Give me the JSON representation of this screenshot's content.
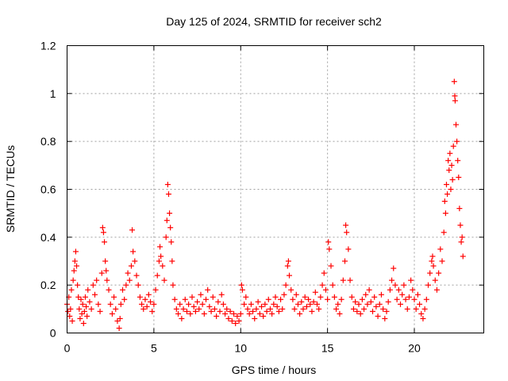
{
  "chart_data": {
    "type": "scatter",
    "title": "Day 125 of 2024, SRMTID for receiver sch2",
    "xlabel": "GPS time / hours",
    "ylabel": "SRMTID / TECUs",
    "xlim": [
      0,
      24
    ],
    "ylim": [
      0,
      1.2
    ],
    "xticks": [
      0,
      5,
      10,
      15,
      20
    ],
    "xtick_labels": [
      "0",
      "5",
      "10",
      "15",
      "20"
    ],
    "yticks": [
      0,
      0.2,
      0.4,
      0.6,
      0.8,
      1.0,
      1.2
    ],
    "ytick_labels": [
      "0",
      "0.2",
      "0.4",
      "0.6",
      "0.8",
      "1",
      "1.2"
    ],
    "grid": true,
    "marker": "+",
    "color": "#ff0000",
    "series": [
      {
        "name": "SRMTID",
        "points": [
          [
            0.0,
            0.12
          ],
          [
            0.05,
            0.09
          ],
          [
            0.1,
            0.15
          ],
          [
            0.15,
            0.07
          ],
          [
            0.2,
            0.1
          ],
          [
            0.25,
            0.18
          ],
          [
            0.3,
            0.05
          ],
          [
            0.35,
            0.22
          ],
          [
            0.4,
            0.26
          ],
          [
            0.45,
            0.3
          ],
          [
            0.5,
            0.34
          ],
          [
            0.55,
            0.28
          ],
          [
            0.6,
            0.2
          ],
          [
            0.65,
            0.15
          ],
          [
            0.7,
            0.1
          ],
          [
            0.75,
            0.06
          ],
          [
            0.8,
            0.14
          ],
          [
            0.85,
            0.08
          ],
          [
            0.9,
            0.12
          ],
          [
            0.95,
            0.04
          ],
          [
            1.0,
            0.09
          ],
          [
            1.05,
            0.15
          ],
          [
            1.1,
            0.11
          ],
          [
            1.15,
            0.07
          ],
          [
            1.2,
            0.18
          ],
          [
            1.3,
            0.13
          ],
          [
            1.4,
            0.1
          ],
          [
            1.5,
            0.2
          ],
          [
            1.6,
            0.16
          ],
          [
            1.7,
            0.22
          ],
          [
            1.8,
            0.12
          ],
          [
            1.9,
            0.09
          ],
          [
            2.0,
            0.25
          ],
          [
            2.05,
            0.44
          ],
          [
            2.1,
            0.42
          ],
          [
            2.15,
            0.38
          ],
          [
            2.2,
            0.3
          ],
          [
            2.25,
            0.26
          ],
          [
            2.3,
            0.22
          ],
          [
            2.4,
            0.18
          ],
          [
            2.5,
            0.12
          ],
          [
            2.6,
            0.08
          ],
          [
            2.7,
            0.15
          ],
          [
            2.8,
            0.1
          ],
          [
            2.9,
            0.05
          ],
          [
            3.0,
            0.02
          ],
          [
            3.05,
            0.06
          ],
          [
            3.1,
            0.12
          ],
          [
            3.2,
            0.18
          ],
          [
            3.3,
            0.14
          ],
          [
            3.4,
            0.2
          ],
          [
            3.5,
            0.25
          ],
          [
            3.6,
            0.22
          ],
          [
            3.7,
            0.28
          ],
          [
            3.75,
            0.43
          ],
          [
            3.8,
            0.34
          ],
          [
            3.9,
            0.3
          ],
          [
            4.0,
            0.24
          ],
          [
            4.1,
            0.2
          ],
          [
            4.2,
            0.15
          ],
          [
            4.3,
            0.12
          ],
          [
            4.4,
            0.1
          ],
          [
            4.5,
            0.14
          ],
          [
            4.6,
            0.11
          ],
          [
            4.7,
            0.16
          ],
          [
            4.8,
            0.13
          ],
          [
            4.9,
            0.09
          ],
          [
            5.0,
            0.12
          ],
          [
            5.1,
            0.18
          ],
          [
            5.2,
            0.24
          ],
          [
            5.3,
            0.3
          ],
          [
            5.35,
            0.36
          ],
          [
            5.4,
            0.32
          ],
          [
            5.5,
            0.28
          ],
          [
            5.6,
            0.22
          ],
          [
            5.7,
            0.4
          ],
          [
            5.75,
            0.47
          ],
          [
            5.8,
            0.62
          ],
          [
            5.85,
            0.58
          ],
          [
            5.9,
            0.5
          ],
          [
            5.95,
            0.44
          ],
          [
            6.0,
            0.38
          ],
          [
            6.05,
            0.3
          ],
          [
            6.1,
            0.2
          ],
          [
            6.2,
            0.14
          ],
          [
            6.3,
            0.1
          ],
          [
            6.4,
            0.08
          ],
          [
            6.5,
            0.12
          ],
          [
            6.6,
            0.06
          ],
          [
            6.7,
            0.1
          ],
          [
            6.8,
            0.14
          ],
          [
            6.9,
            0.09
          ],
          [
            7.0,
            0.12
          ],
          [
            7.1,
            0.08
          ],
          [
            7.2,
            0.15
          ],
          [
            7.3,
            0.11
          ],
          [
            7.4,
            0.09
          ],
          [
            7.5,
            0.13
          ],
          [
            7.6,
            0.1
          ],
          [
            7.7,
            0.16
          ],
          [
            7.8,
            0.12
          ],
          [
            7.9,
            0.08
          ],
          [
            8.0,
            0.14
          ],
          [
            8.1,
            0.18
          ],
          [
            8.2,
            0.11
          ],
          [
            8.3,
            0.09
          ],
          [
            8.4,
            0.15
          ],
          [
            8.5,
            0.1
          ],
          [
            8.6,
            0.07
          ],
          [
            8.7,
            0.13
          ],
          [
            8.8,
            0.09
          ],
          [
            8.9,
            0.16
          ],
          [
            9.0,
            0.12
          ],
          [
            9.1,
            0.08
          ],
          [
            9.2,
            0.1
          ],
          [
            9.3,
            0.06
          ],
          [
            9.4,
            0.09
          ],
          [
            9.5,
            0.05
          ],
          [
            9.6,
            0.08
          ],
          [
            9.7,
            0.04
          ],
          [
            9.8,
            0.07
          ],
          [
            9.9,
            0.05
          ],
          [
            10.0,
            0.08
          ],
          [
            10.05,
            0.2
          ],
          [
            10.1,
            0.18
          ],
          [
            10.2,
            0.12
          ],
          [
            10.3,
            0.15
          ],
          [
            10.4,
            0.1
          ],
          [
            10.5,
            0.08
          ],
          [
            10.6,
            0.12
          ],
          [
            10.7,
            0.09
          ],
          [
            10.8,
            0.06
          ],
          [
            10.9,
            0.1
          ],
          [
            11.0,
            0.13
          ],
          [
            11.1,
            0.08
          ],
          [
            11.2,
            0.11
          ],
          [
            11.3,
            0.07
          ],
          [
            11.4,
            0.12
          ],
          [
            11.5,
            0.09
          ],
          [
            11.6,
            0.14
          ],
          [
            11.7,
            0.1
          ],
          [
            11.8,
            0.08
          ],
          [
            11.9,
            0.12
          ],
          [
            12.0,
            0.15
          ],
          [
            12.1,
            0.11
          ],
          [
            12.2,
            0.09
          ],
          [
            12.3,
            0.14
          ],
          [
            12.4,
            0.1
          ],
          [
            12.5,
            0.16
          ],
          [
            12.6,
            0.2
          ],
          [
            12.7,
            0.28
          ],
          [
            12.75,
            0.3
          ],
          [
            12.8,
            0.24
          ],
          [
            12.9,
            0.18
          ],
          [
            13.0,
            0.14
          ],
          [
            13.1,
            0.1
          ],
          [
            13.2,
            0.16
          ],
          [
            13.3,
            0.12
          ],
          [
            13.4,
            0.08
          ],
          [
            13.5,
            0.13
          ],
          [
            13.6,
            0.1
          ],
          [
            13.7,
            0.15
          ],
          [
            13.8,
            0.11
          ],
          [
            13.9,
            0.14
          ],
          [
            14.0,
            0.12
          ],
          [
            14.1,
            0.09
          ],
          [
            14.2,
            0.13
          ],
          [
            14.3,
            0.17
          ],
          [
            14.4,
            0.12
          ],
          [
            14.5,
            0.1
          ],
          [
            14.6,
            0.15
          ],
          [
            14.7,
            0.2
          ],
          [
            14.8,
            0.25
          ],
          [
            14.9,
            0.18
          ],
          [
            15.0,
            0.14
          ],
          [
            15.05,
            0.38
          ],
          [
            15.1,
            0.35
          ],
          [
            15.2,
            0.28
          ],
          [
            15.3,
            0.2
          ],
          [
            15.4,
            0.15
          ],
          [
            15.5,
            0.1
          ],
          [
            15.6,
            0.12
          ],
          [
            15.7,
            0.08
          ],
          [
            15.8,
            0.14
          ],
          [
            15.9,
            0.22
          ],
          [
            16.0,
            0.3
          ],
          [
            16.05,
            0.45
          ],
          [
            16.1,
            0.42
          ],
          [
            16.2,
            0.35
          ],
          [
            16.3,
            0.22
          ],
          [
            16.4,
            0.15
          ],
          [
            16.5,
            0.1
          ],
          [
            16.6,
            0.13
          ],
          [
            16.7,
            0.09
          ],
          [
            16.8,
            0.12
          ],
          [
            16.9,
            0.08
          ],
          [
            17.0,
            0.14
          ],
          [
            17.1,
            0.1
          ],
          [
            17.2,
            0.16
          ],
          [
            17.3,
            0.12
          ],
          [
            17.4,
            0.18
          ],
          [
            17.5,
            0.13
          ],
          [
            17.6,
            0.09
          ],
          [
            17.7,
            0.15
          ],
          [
            17.8,
            0.11
          ],
          [
            17.9,
            0.07
          ],
          [
            18.0,
            0.12
          ],
          [
            18.1,
            0.16
          ],
          [
            18.2,
            0.1
          ],
          [
            18.3,
            0.06
          ],
          [
            18.4,
            0.09
          ],
          [
            18.5,
            0.13
          ],
          [
            18.6,
            0.18
          ],
          [
            18.7,
            0.22
          ],
          [
            18.8,
            0.27
          ],
          [
            18.9,
            0.2
          ],
          [
            19.0,
            0.14
          ],
          [
            19.1,
            0.18
          ],
          [
            19.2,
            0.12
          ],
          [
            19.3,
            0.16
          ],
          [
            19.4,
            0.2
          ],
          [
            19.5,
            0.14
          ],
          [
            19.6,
            0.1
          ],
          [
            19.7,
            0.15
          ],
          [
            19.8,
            0.22
          ],
          [
            19.9,
            0.18
          ],
          [
            20.0,
            0.14
          ],
          [
            20.1,
            0.1
          ],
          [
            20.2,
            0.16
          ],
          [
            20.3,
            0.12
          ],
          [
            20.4,
            0.08
          ],
          [
            20.5,
            0.06
          ],
          [
            20.6,
            0.1
          ],
          [
            20.7,
            0.14
          ],
          [
            20.8,
            0.2
          ],
          [
            20.9,
            0.25
          ],
          [
            21.0,
            0.3
          ],
          [
            21.05,
            0.32
          ],
          [
            21.1,
            0.28
          ],
          [
            21.2,
            0.22
          ],
          [
            21.3,
            0.18
          ],
          [
            21.4,
            0.25
          ],
          [
            21.5,
            0.35
          ],
          [
            21.6,
            0.3
          ],
          [
            21.7,
            0.42
          ],
          [
            21.75,
            0.55
          ],
          [
            21.8,
            0.5
          ],
          [
            21.85,
            0.62
          ],
          [
            21.9,
            0.58
          ],
          [
            21.95,
            0.72
          ],
          [
            22.0,
            0.68
          ],
          [
            22.05,
            0.75
          ],
          [
            22.1,
            0.6
          ],
          [
            22.15,
            0.7
          ],
          [
            22.2,
            0.64
          ],
          [
            22.25,
            0.78
          ],
          [
            22.3,
            1.05
          ],
          [
            22.33,
            0.99
          ],
          [
            22.35,
            0.97
          ],
          [
            22.4,
            0.87
          ],
          [
            22.45,
            0.8
          ],
          [
            22.5,
            0.72
          ],
          [
            22.55,
            0.65
          ],
          [
            22.6,
            0.52
          ],
          [
            22.65,
            0.45
          ],
          [
            22.7,
            0.38
          ],
          [
            22.75,
            0.4
          ],
          [
            22.8,
            0.32
          ]
        ]
      }
    ]
  }
}
